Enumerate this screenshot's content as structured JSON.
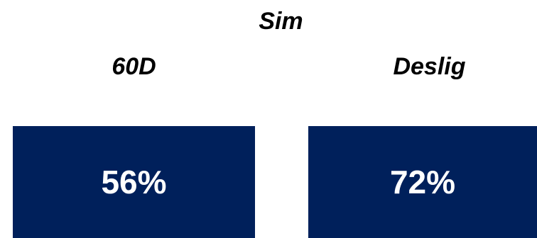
{
  "chart_data": {
    "type": "bar",
    "title": "Sim",
    "categories": [
      "60D",
      "Deslig"
    ],
    "values": [
      56,
      72
    ],
    "value_labels": [
      "56%",
      "72%"
    ],
    "unit": "%",
    "bar_color": "#00205b",
    "label_color": "#ffffff",
    "grid": false,
    "legend": "none"
  }
}
